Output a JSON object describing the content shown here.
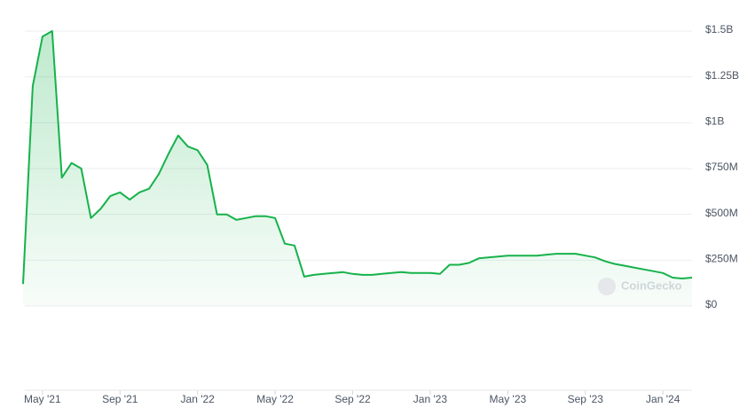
{
  "chart_data": {
    "type": "area",
    "watermark": "CoinGecko",
    "color": "#16b24b",
    "values": [
      120,
      1200,
      1470,
      1500,
      700,
      780,
      750,
      480,
      530,
      600,
      620,
      580,
      620,
      640,
      720,
      830,
      930,
      870,
      850,
      770,
      500,
      500,
      470,
      480,
      490,
      490,
      480,
      340,
      330,
      160,
      170,
      175,
      180,
      185,
      175,
      170,
      170,
      175,
      180,
      185,
      180,
      180,
      180,
      175,
      225,
      225,
      235,
      260,
      265,
      270,
      275,
      275,
      275,
      275,
      280,
      285,
      285,
      285,
      275,
      265,
      245,
      230,
      220,
      210,
      200,
      190,
      180,
      155,
      150,
      155
    ],
    "xlim": [
      0,
      69
    ],
    "xticks": [
      {
        "value": 2,
        "label": "May '21"
      },
      {
        "value": 10,
        "label": "Sep '21"
      },
      {
        "value": 18,
        "label": "Jan '22"
      },
      {
        "value": 26,
        "label": "May '22"
      },
      {
        "value": 34,
        "label": "Sep '22"
      },
      {
        "value": 42,
        "label": "Jan '23"
      },
      {
        "value": 50,
        "label": "May '23"
      },
      {
        "value": 58,
        "label": "Sep '23"
      },
      {
        "value": 66,
        "label": "Jan '24"
      }
    ],
    "ylim": [
      0,
      1500
    ],
    "yticks": [
      {
        "value": 0,
        "label": "$0"
      },
      {
        "value": 250,
        "label": "$250M"
      },
      {
        "value": 500,
        "label": "$500M"
      },
      {
        "value": 750,
        "label": "$750M"
      },
      {
        "value": 1000,
        "label": "$1B"
      },
      {
        "value": 1250,
        "label": "$1.25B"
      },
      {
        "value": 1500,
        "label": "$1.5B"
      }
    ],
    "grid": true
  }
}
